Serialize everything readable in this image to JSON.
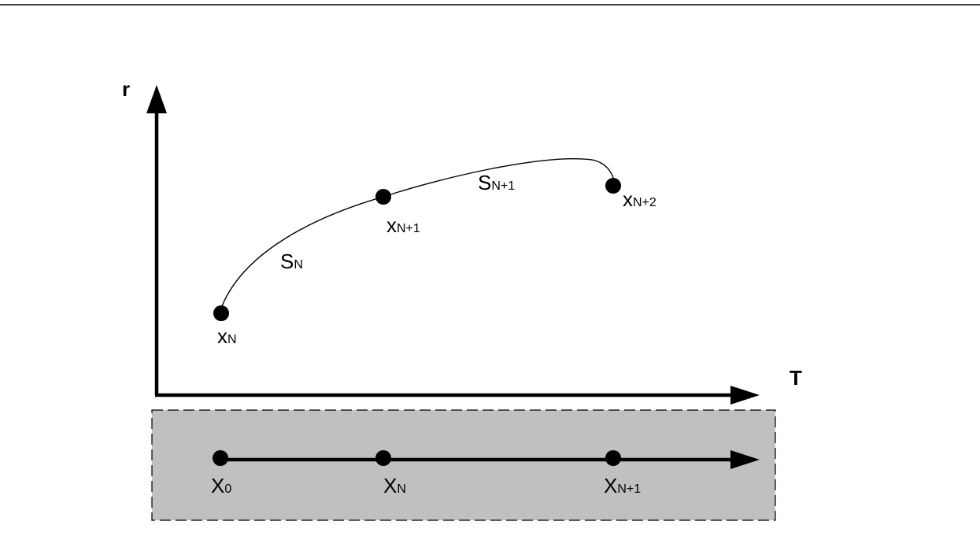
{
  "axes": {
    "vertical_label": "r",
    "horizontal_label": "T"
  },
  "trajectory": {
    "points": [
      {
        "main": "x",
        "sub": "N"
      },
      {
        "main": "x",
        "sub": "N+1"
      },
      {
        "main": "x",
        "sub": "N+2"
      }
    ],
    "segments": [
      {
        "main": "S",
        "sub": "N"
      },
      {
        "main": "S",
        "sub": "N+1"
      }
    ]
  },
  "timeline": {
    "points": [
      {
        "main": "X",
        "sub": "0"
      },
      {
        "main": "X",
        "sub": "N"
      },
      {
        "main": "X",
        "sub": "N+1"
      }
    ]
  },
  "colors": {
    "stroke": "#000000",
    "band_fill": "#c0c0c0",
    "band_border": "#000000",
    "top_rule": "#000000"
  }
}
